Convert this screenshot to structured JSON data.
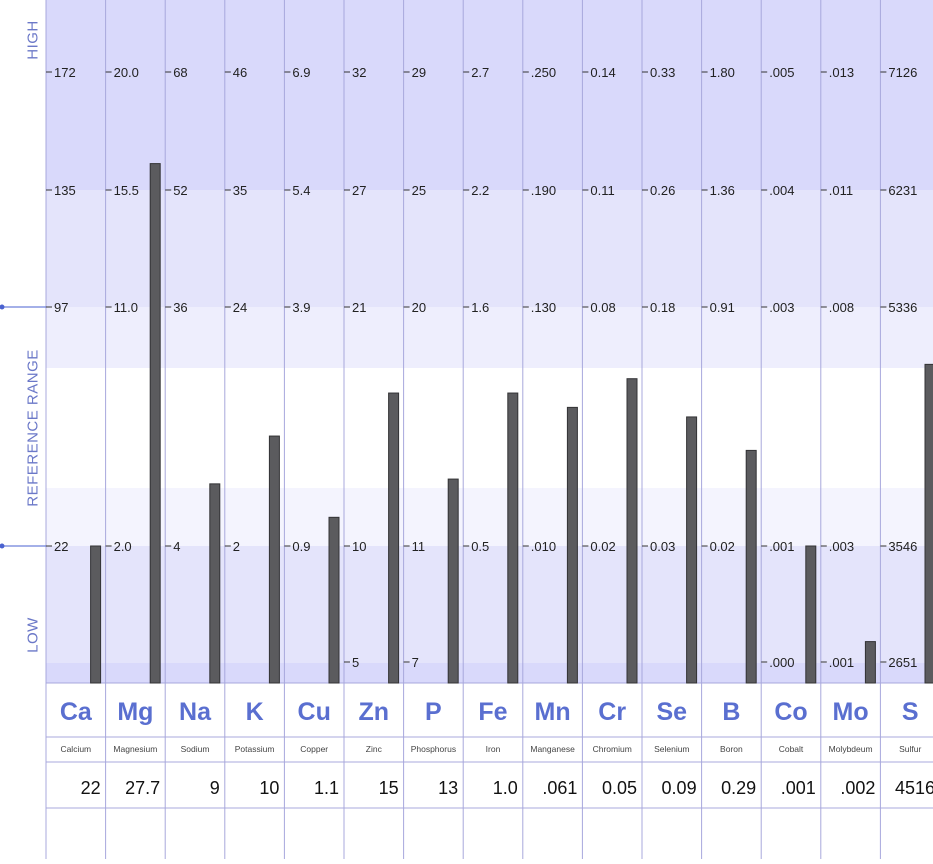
{
  "chart_data": {
    "type": "bar",
    "side_labels": {
      "high": "HIGH",
      "reference_range": "REFERENCE RANGE",
      "low": "LOW"
    },
    "colors": {
      "band_dark": "#d9d9fb",
      "band_mid": "#e4e4fb",
      "band_light": "#eeeefd",
      "band_lighter": "#f4f4fe",
      "band_white": "#ffffff",
      "grid_line": "#a8a8dc",
      "bar": "#5b5b5e",
      "bar_edge": "#333335",
      "symbol": "#5a6fd0",
      "tick_text": "#222222",
      "value_text": "#111111",
      "reference_marker": "#4a62d0"
    },
    "elements": [
      {
        "symbol": "Ca",
        "name": "Calcium",
        "ticks": [
          "172",
          "135",
          "97",
          "22"
        ],
        "low_tick": "",
        "value": "22",
        "level": 0.5
      },
      {
        "symbol": "Mg",
        "name": "Magnesium",
        "ticks": [
          "20.0",
          "15.5",
          "11.0",
          "2.0"
        ],
        "low_tick": "",
        "value": "27.7",
        "level": 1.3
      },
      {
        "symbol": "Na",
        "name": "Sodium",
        "ticks": [
          "68",
          "52",
          "36",
          "4"
        ],
        "low_tick": "",
        "value": "9",
        "level": 0.63
      },
      {
        "symbol": "K",
        "name": "Potassium",
        "ticks": [
          "46",
          "35",
          "24",
          "2"
        ],
        "low_tick": "",
        "value": "10",
        "level": 0.73
      },
      {
        "symbol": "Cu",
        "name": "Copper",
        "ticks": [
          "6.9",
          "5.4",
          "3.9",
          "0.9"
        ],
        "low_tick": "",
        "value": "1.1",
        "level": 0.56
      },
      {
        "symbol": "Zn",
        "name": "Zinc",
        "ticks": [
          "32",
          "27",
          "21",
          "10"
        ],
        "low_tick": "5",
        "value": "15",
        "level": 0.82
      },
      {
        "symbol": "P",
        "name": "Phosphorus",
        "ticks": [
          "29",
          "25",
          "20",
          "11"
        ],
        "low_tick": "7",
        "value": "13",
        "level": 0.64
      },
      {
        "symbol": "Fe",
        "name": "Iron",
        "ticks": [
          "2.7",
          "2.2",
          "1.6",
          "0.5"
        ],
        "low_tick": "",
        "value": "1.0",
        "level": 0.82
      },
      {
        "symbol": "Mn",
        "name": "Manganese",
        "ticks": [
          ".250",
          ".190",
          ".130",
          ".010"
        ],
        "low_tick": "",
        "value": ".061",
        "level": 0.79
      },
      {
        "symbol": "Cr",
        "name": "Chromium",
        "ticks": [
          "0.14",
          "0.11",
          "0.08",
          "0.02"
        ],
        "low_tick": "",
        "value": "0.05",
        "level": 0.85
      },
      {
        "symbol": "Se",
        "name": "Selenium",
        "ticks": [
          "0.33",
          "0.26",
          "0.18",
          "0.03"
        ],
        "low_tick": "",
        "value": "0.09",
        "level": 0.77
      },
      {
        "symbol": "B",
        "name": "Boron",
        "ticks": [
          "1.80",
          "1.36",
          "0.91",
          "0.02"
        ],
        "low_tick": "",
        "value": "0.29",
        "level": 0.7
      },
      {
        "symbol": "Co",
        "name": "Cobalt",
        "ticks": [
          ".005",
          ".004",
          ".003",
          ".001"
        ],
        "low_tick": ".000",
        "value": ".001",
        "level": 0.5
      },
      {
        "symbol": "Mo",
        "name": "Molybdeum",
        "ticks": [
          ".013",
          ".011",
          ".008",
          ".003"
        ],
        "low_tick": ".001",
        "value": ".002",
        "level": 0.3
      },
      {
        "symbol": "S",
        "name": "Sulfur",
        "ticks": [
          "7126",
          "6231",
          "5336",
          "3546"
        ],
        "low_tick": "2651",
        "value": "4516",
        "level": 0.88
      }
    ]
  }
}
